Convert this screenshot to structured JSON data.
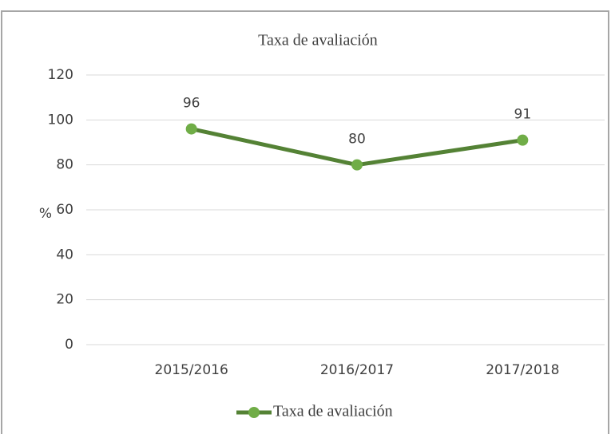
{
  "chart_data": {
    "type": "line",
    "title": "Taxa de avaliación",
    "y_label": "%",
    "categories": [
      "2015/2016",
      "2016/2017",
      "2017/2018"
    ],
    "series": [
      {
        "name": "Taxa de avaliación",
        "color": "#548235",
        "marker_color": "#70ad47",
        "values": [
          96,
          80,
          91
        ]
      }
    ],
    "ylim": [
      0,
      120
    ],
    "yticks": [
      0,
      20,
      40,
      60,
      80,
      100,
      120
    ],
    "grid": true,
    "legend": "bottom",
    "data_labels": true
  }
}
